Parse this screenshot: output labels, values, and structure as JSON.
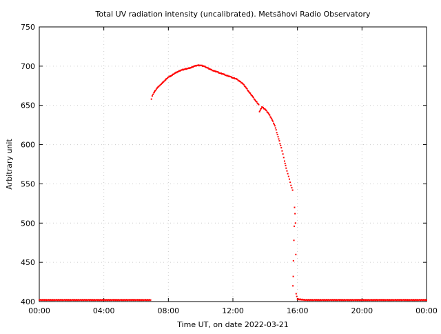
{
  "chart_data": {
    "type": "scatter",
    "title": "Total UV radiation intensity (uncalibrated). Metsähovi Radio Observatory",
    "xlabel": "Time UT, on date 2022-03-21",
    "ylabel": "Arbitrary unit",
    "x_unit": "hours UT",
    "xlim": [
      0,
      24
    ],
    "ylim": [
      400,
      750
    ],
    "x_ticks": [
      {
        "value": 0,
        "label": "00:00"
      },
      {
        "value": 4,
        "label": "04:00"
      },
      {
        "value": 8,
        "label": "08:00"
      },
      {
        "value": 12,
        "label": "12:00"
      },
      {
        "value": 16,
        "label": "16:00"
      },
      {
        "value": 20,
        "label": "20:00"
      },
      {
        "value": 24,
        "label": "00:00"
      }
    ],
    "y_ticks": [
      {
        "value": 400,
        "label": "400"
      },
      {
        "value": 450,
        "label": "450"
      },
      {
        "value": 500,
        "label": "500"
      },
      {
        "value": 550,
        "label": "550"
      },
      {
        "value": 600,
        "label": "600"
      },
      {
        "value": 650,
        "label": "650"
      },
      {
        "value": 700,
        "label": "700"
      },
      {
        "value": 750,
        "label": "750"
      }
    ],
    "grid": true,
    "legend": "none",
    "series": [
      {
        "color": "#ff0000",
        "points": [
          [
            0.0,
            402
          ],
          [
            0.5,
            402
          ],
          [
            1.0,
            402
          ],
          [
            1.5,
            402
          ],
          [
            2.0,
            402
          ],
          [
            2.5,
            402
          ],
          [
            3.0,
            402
          ],
          [
            3.5,
            402
          ],
          [
            4.0,
            402
          ],
          [
            4.5,
            402
          ],
          [
            5.0,
            402
          ],
          [
            5.5,
            402
          ],
          [
            6.0,
            402
          ],
          [
            6.5,
            402
          ],
          [
            6.9,
            402
          ],
          [
            6.95,
            658
          ],
          [
            7.0,
            662
          ],
          [
            7.1,
            666
          ],
          [
            7.2,
            669
          ],
          [
            7.3,
            672
          ],
          [
            7.4,
            674
          ],
          [
            7.5,
            676
          ],
          [
            7.6,
            678
          ],
          [
            7.7,
            680
          ],
          [
            7.8,
            682
          ],
          [
            7.9,
            684
          ],
          [
            8.0,
            686
          ],
          [
            8.2,
            688
          ],
          [
            8.4,
            691
          ],
          [
            8.6,
            693
          ],
          [
            8.8,
            695
          ],
          [
            9.0,
            696
          ],
          [
            9.2,
            697
          ],
          [
            9.4,
            698
          ],
          [
            9.6,
            700
          ],
          [
            9.8,
            701
          ],
          [
            10.0,
            701
          ],
          [
            10.2,
            700
          ],
          [
            10.4,
            698
          ],
          [
            10.6,
            696
          ],
          [
            10.8,
            694
          ],
          [
            11.0,
            693
          ],
          [
            11.2,
            691
          ],
          [
            11.4,
            690
          ],
          [
            11.6,
            688
          ],
          [
            11.8,
            687
          ],
          [
            12.0,
            685
          ],
          [
            12.2,
            684
          ],
          [
            12.4,
            681
          ],
          [
            12.6,
            678
          ],
          [
            12.8,
            673
          ],
          [
            13.0,
            667
          ],
          [
            13.2,
            662
          ],
          [
            13.4,
            656
          ],
          [
            13.6,
            651
          ],
          [
            13.65,
            642
          ],
          [
            13.8,
            648
          ],
          [
            14.0,
            645
          ],
          [
            14.2,
            640
          ],
          [
            14.4,
            633
          ],
          [
            14.6,
            624
          ],
          [
            14.8,
            610
          ],
          [
            15.0,
            596
          ],
          [
            15.1,
            588
          ],
          [
            15.2,
            579
          ],
          [
            15.3,
            570
          ],
          [
            15.4,
            563
          ],
          [
            15.5,
            556
          ],
          [
            15.6,
            548
          ],
          [
            15.7,
            542
          ],
          [
            15.72,
            420
          ],
          [
            15.74,
            432
          ],
          [
            15.75,
            452
          ],
          [
            15.78,
            478
          ],
          [
            15.8,
            496
          ],
          [
            15.82,
            520
          ],
          [
            15.85,
            512
          ],
          [
            15.88,
            500
          ],
          [
            15.9,
            460
          ],
          [
            15.92,
            410
          ],
          [
            16.0,
            403
          ],
          [
            16.5,
            402
          ],
          [
            17.0,
            402
          ],
          [
            17.5,
            402
          ],
          [
            18.0,
            402
          ],
          [
            18.5,
            402
          ],
          [
            19.0,
            402
          ],
          [
            19.5,
            402
          ],
          [
            20.0,
            402
          ],
          [
            20.5,
            402
          ],
          [
            21.0,
            402
          ],
          [
            21.5,
            402
          ],
          [
            22.0,
            402
          ],
          [
            22.5,
            402
          ],
          [
            23.0,
            402
          ],
          [
            23.5,
            402
          ],
          [
            24.0,
            402
          ]
        ]
      }
    ]
  }
}
